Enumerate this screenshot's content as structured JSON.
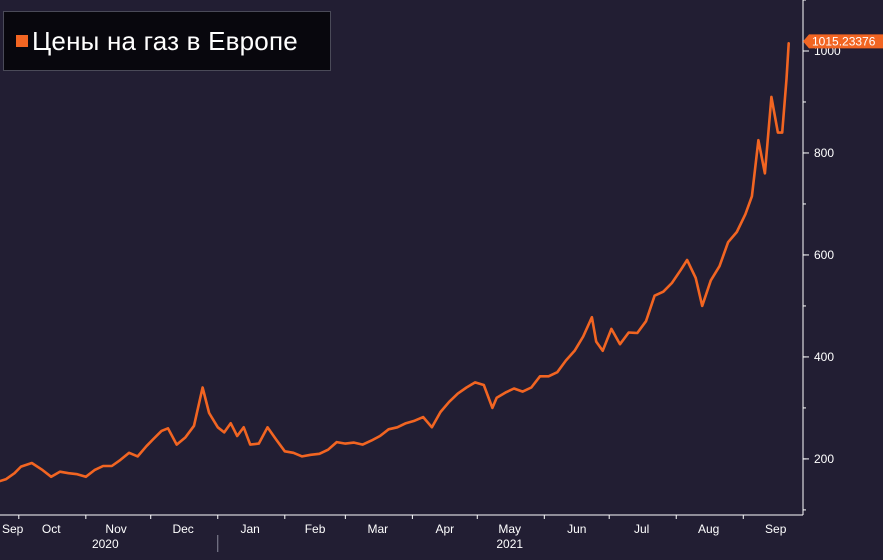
{
  "legend": {
    "label": "Цены на газ в Европе",
    "swatch_color": "#f26522"
  },
  "last_value_label": "1015.23376",
  "colors": {
    "background": "#221e33",
    "line": "#f26522",
    "axis": "#ffffff"
  },
  "chart_data": {
    "type": "line",
    "title": "",
    "xlabel": "",
    "ylabel": "",
    "ylim": [
      90,
      1100
    ],
    "y_ticks": [
      200,
      400,
      600,
      800,
      1000
    ],
    "x_month_labels": [
      "Sep",
      "Oct",
      "Nov",
      "Dec",
      "Jan",
      "Feb",
      "Mar",
      "Apr",
      "May",
      "Jun",
      "Jul",
      "Aug",
      "Sep"
    ],
    "x_year_labels": [
      "2020",
      "2021"
    ],
    "grid": false,
    "legend_position": "top-left",
    "series": [
      {
        "name": "Цены на газ в Европе",
        "x": [
          "2020-09-21",
          "2020-09-25",
          "2020-09-29",
          "2020-10-02",
          "2020-10-07",
          "2020-10-12",
          "2020-10-16",
          "2020-10-20",
          "2020-10-24",
          "2020-10-28",
          "2020-11-01",
          "2020-11-05",
          "2020-11-09",
          "2020-11-13",
          "2020-11-17",
          "2020-11-21",
          "2020-11-25",
          "2020-11-29",
          "2020-12-02",
          "2020-12-06",
          "2020-12-09",
          "2020-12-13",
          "2020-12-17",
          "2020-12-21",
          "2020-12-25",
          "2020-12-28",
          "2021-01-01",
          "2021-01-04",
          "2021-01-07",
          "2021-01-10",
          "2021-01-13",
          "2021-01-16",
          "2021-01-20",
          "2021-01-24",
          "2021-01-28",
          "2021-02-01",
          "2021-02-05",
          "2021-02-09",
          "2021-02-13",
          "2021-02-17",
          "2021-02-21",
          "2021-02-25",
          "2021-03-01",
          "2021-03-05",
          "2021-03-09",
          "2021-03-13",
          "2021-03-17",
          "2021-03-21",
          "2021-03-25",
          "2021-03-29",
          "2021-04-02",
          "2021-04-06",
          "2021-04-10",
          "2021-04-14",
          "2021-04-18",
          "2021-04-22",
          "2021-04-26",
          "2021-04-30",
          "2021-05-04",
          "2021-05-08",
          "2021-05-10",
          "2021-05-14",
          "2021-05-18",
          "2021-05-22",
          "2021-05-26",
          "2021-05-30",
          "2021-06-03",
          "2021-06-07",
          "2021-06-11",
          "2021-06-15",
          "2021-06-19",
          "2021-06-23",
          "2021-06-25",
          "2021-06-28",
          "2021-07-02",
          "2021-07-06",
          "2021-07-10",
          "2021-07-14",
          "2021-07-18",
          "2021-07-22",
          "2021-07-26",
          "2021-07-30",
          "2021-08-03",
          "2021-08-06",
          "2021-08-10",
          "2021-08-13",
          "2021-08-17",
          "2021-08-21",
          "2021-08-25",
          "2021-08-29",
          "2021-09-02",
          "2021-09-05",
          "2021-09-08",
          "2021-09-11",
          "2021-09-14",
          "2021-09-17",
          "2021-09-19",
          "2021-09-21",
          "2021-09-22"
        ],
        "y": [
          155,
          160,
          172,
          185,
          192,
          178,
          165,
          175,
          172,
          170,
          165,
          178,
          186,
          186,
          198,
          212,
          205,
          225,
          238,
          255,
          260,
          228,
          242,
          265,
          340,
          290,
          262,
          252,
          270,
          245,
          262,
          228,
          230,
          262,
          238,
          215,
          212,
          205,
          208,
          210,
          218,
          233,
          230,
          232,
          228,
          236,
          245,
          258,
          262,
          270,
          275,
          282,
          262,
          292,
          312,
          328,
          340,
          350,
          345,
          300,
          320,
          330,
          338,
          332,
          340,
          362,
          362,
          370,
          393,
          412,
          440,
          478,
          430,
          412,
          455,
          425,
          448,
          447,
          470,
          520,
          528,
          545,
          570,
          590,
          555,
          500,
          550,
          578,
          625,
          645,
          680,
          715,
          825,
          760,
          910,
          840,
          840,
          945,
          1015
        ]
      }
    ]
  }
}
